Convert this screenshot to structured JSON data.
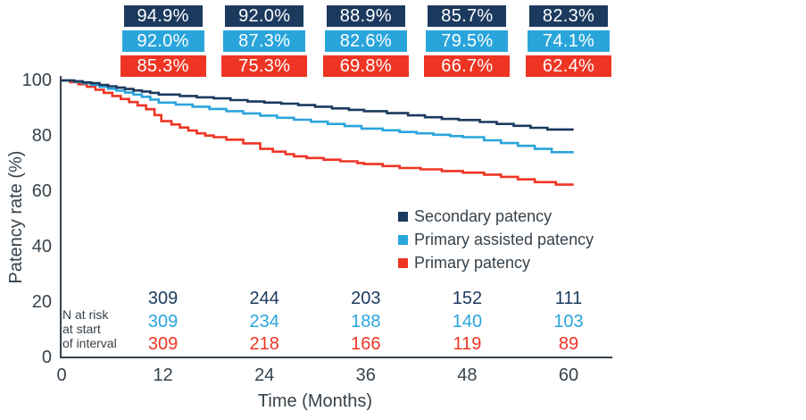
{
  "colors": {
    "secondary": "#1b3a5e",
    "primary_assisted": "#2aa5dc",
    "primary": "#ee3524",
    "axis_text": "#37424b",
    "box_text": "#ffffff"
  },
  "chart_data": {
    "type": "line",
    "variant": "kaplan_meier_step",
    "title": "",
    "xlabel": "Time (Months)",
    "ylabel": "Patency rate (%)",
    "xticks": [
      "0",
      "12",
      "24",
      "36",
      "48",
      "60"
    ],
    "yticks": [
      "0",
      "20",
      "40",
      "60",
      "80",
      "100"
    ],
    "xlim": [
      0,
      65
    ],
    "ylim": [
      0,
      100
    ],
    "grid": false,
    "legend_position": "inside-right-middle",
    "interval_months": [
      12,
      24,
      36,
      48,
      60
    ],
    "n_at_risk_label_lines": [
      "N at risk",
      "at start",
      "of interval"
    ],
    "series": [
      {
        "name": "Secondary patency",
        "color": "#1b3a5e",
        "interval_patency_labels": [
          "94.9%",
          "92.0%",
          "88.9%",
          "85.7%",
          "82.3%"
        ],
        "interval_patency_pct": [
          94.9,
          92.0,
          88.9,
          85.7,
          82.3
        ],
        "n_at_risk": [
          "309",
          "244",
          "203",
          "152",
          "111"
        ],
        "steps": [
          [
            0,
            100
          ],
          [
            1.5,
            99.7
          ],
          [
            2.5,
            99.3
          ],
          [
            3.5,
            99.0
          ],
          [
            4.5,
            98.4
          ],
          [
            5.5,
            97.9
          ],
          [
            6.5,
            97.4
          ],
          [
            7.5,
            96.9
          ],
          [
            8.5,
            96.4
          ],
          [
            9.5,
            96.0
          ],
          [
            10.5,
            95.5
          ],
          [
            11.5,
            94.9
          ],
          [
            14,
            94.4
          ],
          [
            16,
            93.9
          ],
          [
            18,
            93.5
          ],
          [
            20,
            92.9
          ],
          [
            22,
            92.4
          ],
          [
            24,
            92.0
          ],
          [
            26,
            91.6
          ],
          [
            28,
            91.1
          ],
          [
            30,
            90.5
          ],
          [
            32,
            89.9
          ],
          [
            34,
            89.4
          ],
          [
            35.8,
            88.9
          ],
          [
            38.5,
            88.2
          ],
          [
            41,
            87.4
          ],
          [
            43,
            86.7
          ],
          [
            45,
            86.1
          ],
          [
            47,
            85.7
          ],
          [
            49.5,
            85.0
          ],
          [
            51.5,
            84.3
          ],
          [
            53.5,
            83.6
          ],
          [
            55.5,
            82.9
          ],
          [
            57.5,
            82.3
          ],
          [
            60.6,
            82.3
          ]
        ]
      },
      {
        "name": "Primary assisted patency",
        "color": "#2aa5dc",
        "interval_patency_labels": [
          "92.0%",
          "87.3%",
          "82.6%",
          "79.5%",
          "74.1%"
        ],
        "interval_patency_pct": [
          92.0,
          87.3,
          82.6,
          79.5,
          74.1
        ],
        "n_at_risk": [
          "309",
          "234",
          "188",
          "140",
          "103"
        ],
        "steps": [
          [
            0,
            100
          ],
          [
            1.5,
            99.5
          ],
          [
            2.5,
            99.0
          ],
          [
            3.5,
            98.4
          ],
          [
            4.5,
            97.7
          ],
          [
            5.5,
            97.0
          ],
          [
            6.5,
            96.3
          ],
          [
            7.5,
            95.6
          ],
          [
            8.5,
            94.9
          ],
          [
            9.5,
            94.1
          ],
          [
            10.5,
            93.1
          ],
          [
            11.5,
            92.0
          ],
          [
            13.5,
            91.3
          ],
          [
            15.5,
            90.5
          ],
          [
            17.5,
            89.7
          ],
          [
            19.5,
            88.9
          ],
          [
            21.5,
            88.1
          ],
          [
            23.5,
            87.3
          ],
          [
            25.5,
            86.5
          ],
          [
            27.5,
            85.8
          ],
          [
            29.5,
            85.1
          ],
          [
            31.5,
            84.3
          ],
          [
            33.5,
            83.5
          ],
          [
            35.5,
            82.6
          ],
          [
            38,
            82.0
          ],
          [
            40,
            81.4
          ],
          [
            42,
            80.9
          ],
          [
            44,
            80.4
          ],
          [
            46,
            79.9
          ],
          [
            47.5,
            79.5
          ],
          [
            50,
            78.4
          ],
          [
            52,
            77.4
          ],
          [
            54,
            76.4
          ],
          [
            56,
            75.3
          ],
          [
            58,
            74.1
          ],
          [
            60.6,
            74.1
          ]
        ]
      },
      {
        "name": "Primary patency",
        "color": "#ee3524",
        "interval_patency_labels": [
          "85.3%",
          "75.3%",
          "69.8%",
          "66.7%",
          "62.4%"
        ],
        "interval_patency_pct": [
          85.3,
          75.3,
          69.8,
          66.7,
          62.4
        ],
        "n_at_risk": [
          "309",
          "218",
          "166",
          "119",
          "89"
        ],
        "steps": [
          [
            0,
            100
          ],
          [
            1,
            99.4
          ],
          [
            2,
            98.6
          ],
          [
            3,
            97.7
          ],
          [
            4,
            96.6
          ],
          [
            5,
            95.5
          ],
          [
            6,
            94.4
          ],
          [
            7,
            93.3
          ],
          [
            8,
            92.2
          ],
          [
            9,
            91.0
          ],
          [
            10,
            89.6
          ],
          [
            11,
            87.5
          ],
          [
            11.8,
            85.3
          ],
          [
            13,
            84.1
          ],
          [
            14,
            83.0
          ],
          [
            15,
            81.9
          ],
          [
            16,
            80.9
          ],
          [
            17,
            80.1
          ],
          [
            18,
            79.5
          ],
          [
            19.5,
            78.6
          ],
          [
            21.5,
            77.3
          ],
          [
            23.5,
            75.3
          ],
          [
            25,
            74.3
          ],
          [
            26.5,
            73.4
          ],
          [
            27.5,
            72.6
          ],
          [
            29,
            72.0
          ],
          [
            31,
            71.4
          ],
          [
            33,
            70.8
          ],
          [
            35,
            70.2
          ],
          [
            35.8,
            69.8
          ],
          [
            38,
            69.1
          ],
          [
            40,
            68.4
          ],
          [
            42.5,
            67.9
          ],
          [
            45,
            67.3
          ],
          [
            47.5,
            66.7
          ],
          [
            50,
            66.0
          ],
          [
            52,
            65.2
          ],
          [
            54,
            64.3
          ],
          [
            56,
            63.3
          ],
          [
            58.5,
            62.4
          ],
          [
            60.6,
            62.4
          ]
        ]
      }
    ]
  }
}
